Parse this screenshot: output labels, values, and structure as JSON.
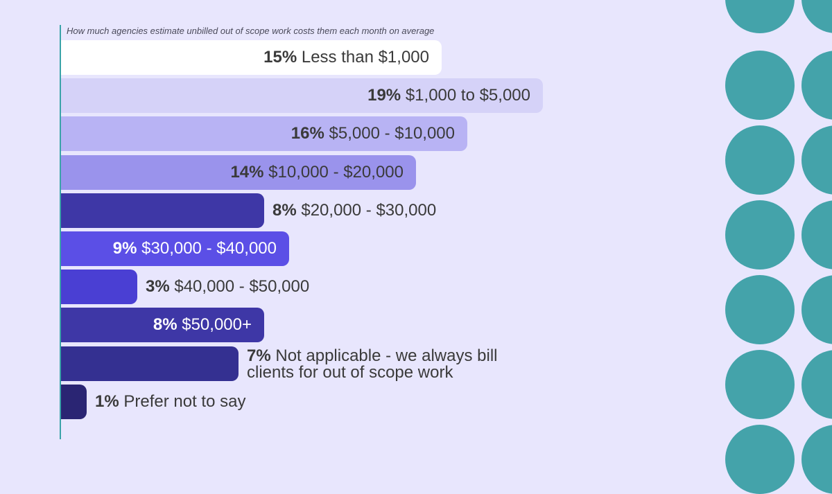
{
  "subtitle": "How much agencies estimate unbilled out of scope work costs them each month on average",
  "colors": {
    "background": "#e8e6fd",
    "axis": "#3aa3a8",
    "circles": "#44a3aa"
  },
  "chart_data": {
    "type": "bar",
    "orientation": "horizontal",
    "title": "How much agencies estimate unbilled out of scope work costs them each month on average",
    "unit": "%",
    "categories": [
      "Less than $1,000",
      "$1,000 to $5,000",
      "$5,000 - $10,000",
      "$10,000 - $20,000",
      "$20,000 - $30,000",
      "$30,000 - $40,000",
      "$40,000 - $50,000",
      "$50,000+",
      "Not applicable - we always bill clients for out of scope work",
      "Prefer not to say"
    ],
    "values": [
      15,
      19,
      16,
      14,
      8,
      9,
      3,
      8,
      7,
      1
    ],
    "value_labels": [
      "15%",
      "19%",
      "16%",
      "14%",
      "8%",
      "9%",
      "3%",
      "8%",
      "7%",
      "1%"
    ],
    "bar_colors": [
      "#ffffff",
      "#d5d2f8",
      "#b8b3f4",
      "#9a93ec",
      "#3e37a6",
      "#5b4fe6",
      "#4a3fd3",
      "#3e37a6",
      "#343091",
      "#2a2573"
    ],
    "label_positions": [
      "inside",
      "inside",
      "inside",
      "inside",
      "outside",
      "inside",
      "outside",
      "inside",
      "outside",
      "outside"
    ],
    "label_tones": [
      "dark",
      "dark",
      "dark",
      "dark",
      "dark",
      "light",
      "dark",
      "light",
      "dark",
      "dark"
    ],
    "legend": "none",
    "grid": false
  }
}
